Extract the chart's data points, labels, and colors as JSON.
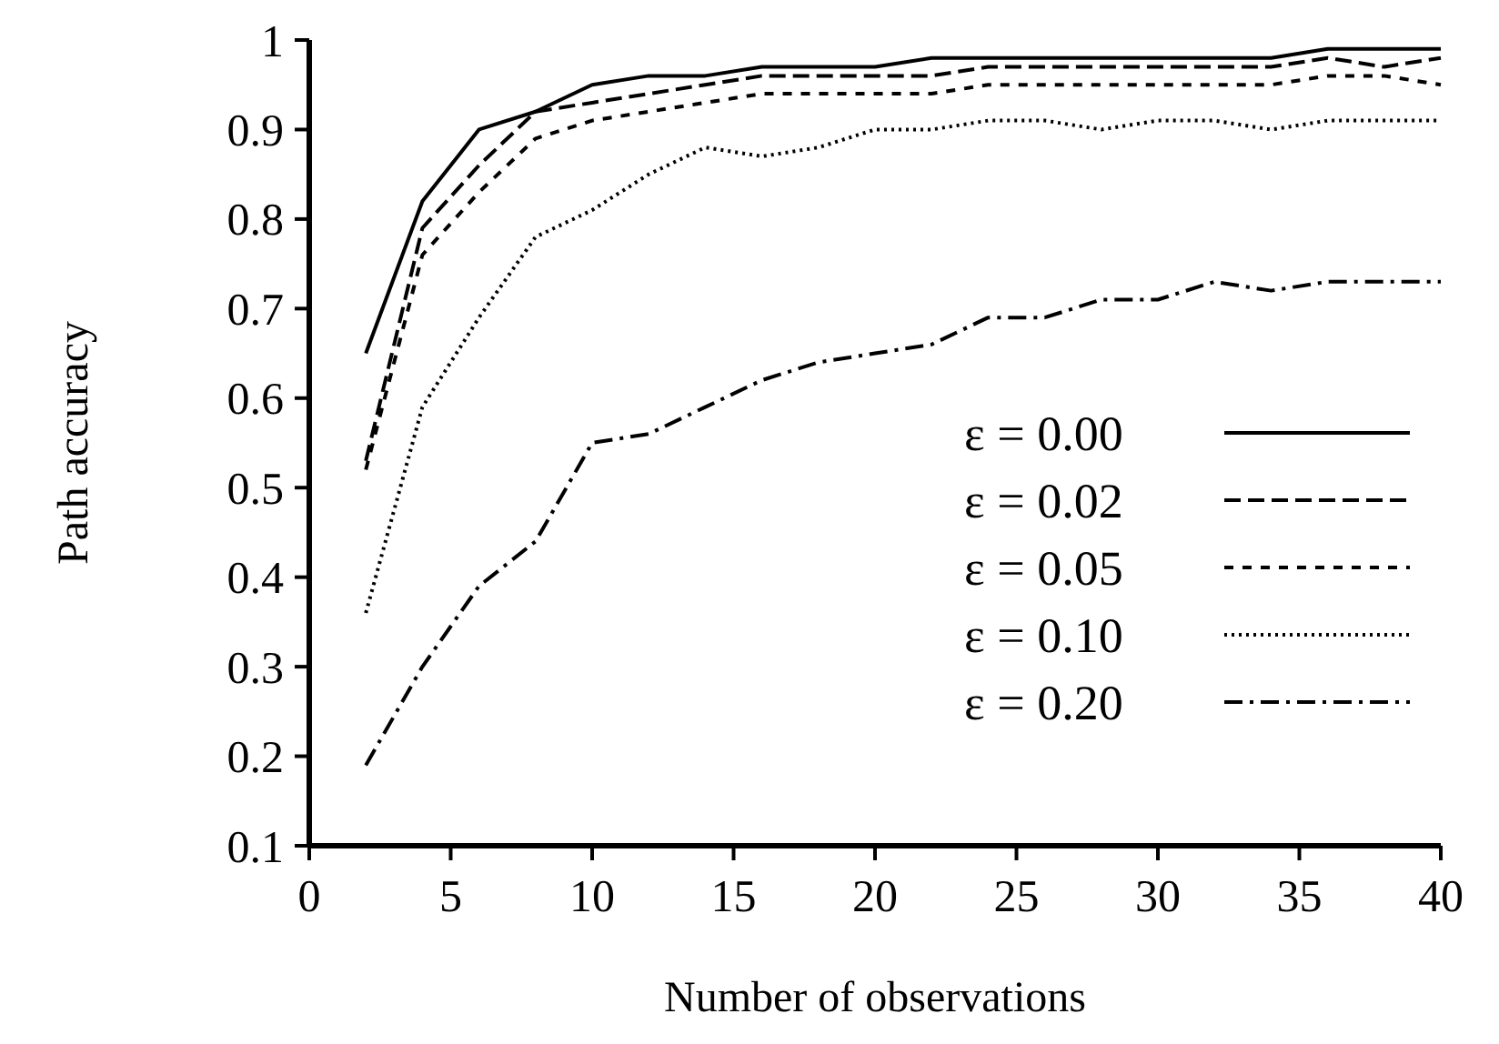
{
  "chart_data": {
    "type": "line",
    "xlabel": "Number of observations",
    "ylabel": "Path accuracy",
    "x": [
      2,
      4,
      6,
      8,
      10,
      12,
      14,
      16,
      18,
      20,
      22,
      24,
      26,
      28,
      30,
      32,
      34,
      36,
      38,
      40
    ],
    "xlim": [
      0,
      40
    ],
    "xticks": [
      0,
      5,
      10,
      15,
      20,
      25,
      30,
      35,
      40
    ],
    "ylim": [
      0.1,
      1
    ],
    "yticks": [
      0.1,
      0.2,
      0.3,
      0.4,
      0.5,
      0.6,
      0.7,
      0.8,
      0.9,
      1
    ],
    "grid": false,
    "legend": "right",
    "marker": "none",
    "series": [
      {
        "name": "ε = 0.00",
        "color": "#000000",
        "line_style": "solid",
        "values": [
          0.65,
          0.82,
          0.9,
          0.92,
          0.95,
          0.96,
          0.96,
          0.97,
          0.97,
          0.97,
          0.98,
          0.98,
          0.98,
          0.98,
          0.98,
          0.98,
          0.98,
          0.99,
          0.99,
          0.99
        ]
      },
      {
        "name": "ε = 0.02",
        "color": "#000000",
        "line_style": "dashed",
        "values": [
          0.53,
          0.79,
          0.86,
          0.92,
          0.93,
          0.94,
          0.95,
          0.96,
          0.96,
          0.96,
          0.96,
          0.97,
          0.97,
          0.97,
          0.97,
          0.97,
          0.97,
          0.98,
          0.97,
          0.98
        ]
      },
      {
        "name": "ε = 0.05",
        "color": "#000000",
        "line_style": "shortdash",
        "values": [
          0.52,
          0.76,
          0.83,
          0.89,
          0.91,
          0.92,
          0.93,
          0.94,
          0.94,
          0.94,
          0.94,
          0.95,
          0.95,
          0.95,
          0.95,
          0.95,
          0.95,
          0.96,
          0.96,
          0.95
        ]
      },
      {
        "name": "ε = 0.10",
        "color": "#000000",
        "line_style": "dotted",
        "values": [
          0.36,
          0.59,
          0.69,
          0.78,
          0.81,
          0.85,
          0.88,
          0.87,
          0.88,
          0.9,
          0.9,
          0.91,
          0.91,
          0.9,
          0.91,
          0.91,
          0.9,
          0.91,
          0.91,
          0.91
        ]
      },
      {
        "name": "ε = 0.20",
        "color": "#000000",
        "line_style": "dashdot",
        "values": [
          0.19,
          0.3,
          0.39,
          0.44,
          0.55,
          0.56,
          0.59,
          0.62,
          0.64,
          0.65,
          0.66,
          0.69,
          0.69,
          0.71,
          0.71,
          0.73,
          0.72,
          0.73,
          0.73,
          0.73
        ]
      }
    ]
  }
}
